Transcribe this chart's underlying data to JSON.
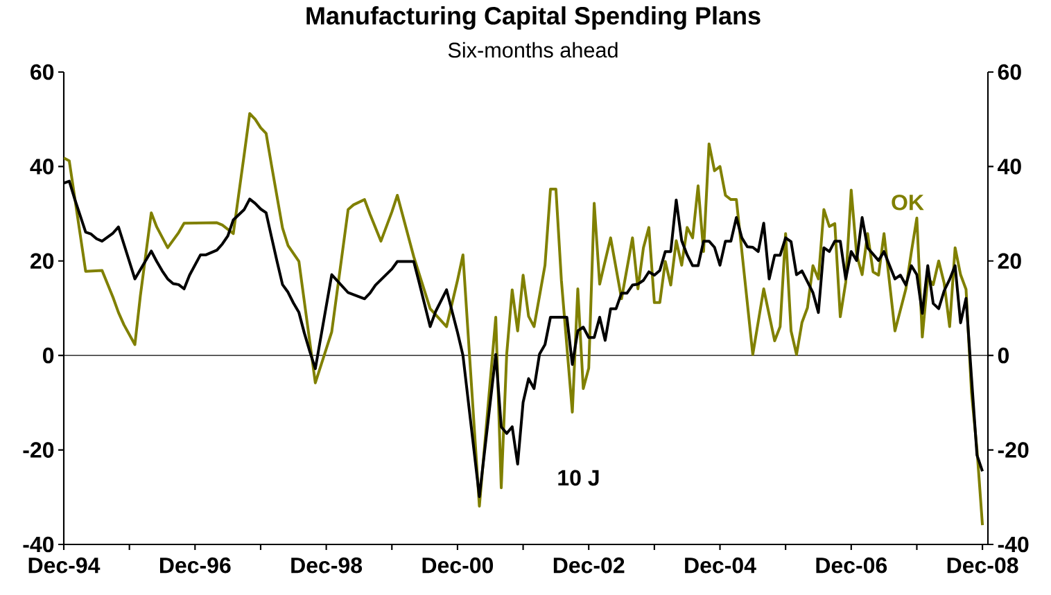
{
  "chart_data": {
    "type": "line",
    "title": "Manufacturing Capital Spending Plans",
    "subtitle": "Six-months ahead",
    "xlim": [
      "1994-12",
      "2009-01"
    ],
    "xticks": [
      {
        "value": "1994-12",
        "label": "Dec-94"
      },
      {
        "value": "1995-12",
        "label": null
      },
      {
        "value": "1996-12",
        "label": "Dec-96"
      },
      {
        "value": "1997-12",
        "label": null
      },
      {
        "value": "1998-12",
        "label": "Dec-98"
      },
      {
        "value": "1999-12",
        "label": null
      },
      {
        "value": "2000-12",
        "label": "Dec-00"
      },
      {
        "value": "2001-12",
        "label": null
      },
      {
        "value": "2002-12",
        "label": "Dec-02"
      },
      {
        "value": "2003-12",
        "label": null
      },
      {
        "value": "2004-12",
        "label": "Dec-04"
      },
      {
        "value": "2005-12",
        "label": null
      },
      {
        "value": "2006-12",
        "label": "Dec-06"
      },
      {
        "value": "2007-12",
        "label": null
      },
      {
        "value": "2008-12",
        "label": "Dec-08"
      }
    ],
    "ylim": [
      -40,
      60
    ],
    "yticks": [
      -40,
      -20,
      0,
      20,
      40,
      60
    ],
    "y2lim": [
      -40,
      60
    ],
    "y2ticks": [
      -40,
      -20,
      0,
      20,
      40,
      60
    ],
    "line_style": "solid",
    "ref_lines": [
      {
        "axis": "y",
        "value": 0,
        "color": "#000000"
      }
    ],
    "series": [
      {
        "name": "OK",
        "color": "#808000",
        "x": [
          "1994-12",
          "1995-01",
          "1995-04",
          "1995-07",
          "1995-09",
          "1995-10",
          "1995-11",
          "1996-01",
          "1996-02",
          "1996-04",
          "1996-05",
          "1996-07",
          "1996-09",
          "1996-10",
          "1997-04",
          "1997-05",
          "1997-07",
          "1997-09",
          "1997-10",
          "1997-11",
          "1997-12",
          "1998-01",
          "1998-02",
          "1998-04",
          "1998-05",
          "1998-07",
          "1998-10",
          "1999-01",
          "1999-04",
          "1999-05",
          "1999-07",
          "1999-08",
          "1999-10",
          "1999-12",
          "2000-01",
          "2000-04",
          "2000-07",
          "2000-10",
          "2000-12",
          "2001-01",
          "2001-04",
          "2001-07",
          "2001-08",
          "2001-09",
          "2001-10",
          "2001-11",
          "2001-12",
          "2002-01",
          "2002-02",
          "2002-04",
          "2002-05",
          "2002-06",
          "2002-07",
          "2002-09",
          "2002-10",
          "2002-11",
          "2002-12",
          "2003-01",
          "2003-02",
          "2003-04",
          "2003-06",
          "2003-08",
          "2003-09",
          "2003-10",
          "2003-11",
          "2003-12",
          "2004-01",
          "2004-02",
          "2004-03",
          "2004-04",
          "2004-05",
          "2004-06",
          "2004-07",
          "2004-08",
          "2004-09",
          "2004-10",
          "2004-11",
          "2004-12",
          "2005-01",
          "2005-02",
          "2005-03",
          "2005-06",
          "2005-08",
          "2005-10",
          "2005-11",
          "2005-12",
          "2006-01",
          "2006-02",
          "2006-03",
          "2006-04",
          "2006-05",
          "2006-06",
          "2006-07",
          "2006-08",
          "2006-09",
          "2006-10",
          "2006-11",
          "2006-12",
          "2007-01",
          "2007-02",
          "2007-03",
          "2007-04",
          "2007-05",
          "2007-06",
          "2007-08",
          "2007-10",
          "2007-11",
          "2007-12",
          "2008-01",
          "2008-02",
          "2008-03",
          "2008-04",
          "2008-05",
          "2008-06",
          "2008-07",
          "2008-08",
          "2008-09",
          "2008-10",
          "2008-11",
          "2008-12"
        ],
        "values": [
          41.8,
          41.2,
          17.8,
          18.0,
          12.3,
          9.1,
          6.5,
          2.3,
          12.6,
          30.2,
          27.2,
          22.8,
          26.0,
          28.0,
          28.1,
          27.6,
          25.8,
          42.6,
          51.2,
          50.0,
          48.2,
          47.0,
          40.2,
          27.0,
          23.3,
          19.9,
          -5.8,
          5.0,
          30.9,
          31.9,
          33.0,
          29.9,
          24.2,
          30.4,
          33.9,
          20.9,
          9.9,
          6.1,
          15.9,
          21.3,
          -31.9,
          8.1,
          -28.0,
          0.3,
          13.9,
          5.2,
          17.0,
          8.3,
          6.1,
          19.1,
          35.2,
          35.2,
          15.9,
          -12.0,
          14.1,
          -7.0,
          -2.7,
          32.2,
          15.1,
          24.9,
          12.0,
          24.9,
          14.1,
          22.8,
          27.1,
          11.2,
          11.2,
          19.9,
          14.9,
          24.3,
          19.1,
          27.1,
          24.9,
          35.9,
          22.0,
          44.8,
          39.1,
          40.0,
          33.9,
          33.0,
          33.0,
          0.2,
          14.1,
          3.1,
          6.1,
          25.8,
          5.2,
          0.2,
          7.0,
          10.1,
          19.0,
          16.2,
          30.9,
          27.3,
          27.9,
          8.2,
          15.5,
          35.0,
          21.3,
          17.1,
          25.8,
          17.7,
          17.0,
          25.8,
          5.2,
          14.1,
          21.9,
          29.1,
          3.9,
          16.4,
          15.0,
          20.0,
          15.3,
          6.1,
          22.8,
          17.1,
          14.0,
          -7.9,
          -19.9,
          -35.9
        ]
      },
      {
        "name": "10 J",
        "color": "#000000",
        "x": [
          "1994-12",
          "1995-01",
          "1995-02",
          "1995-04",
          "1995-05",
          "1995-06",
          "1995-07",
          "1995-09",
          "1995-10",
          "1996-01",
          "1996-04",
          "1996-05",
          "1996-06",
          "1996-07",
          "1996-08",
          "1996-09",
          "1996-10",
          "1996-11",
          "1997-01",
          "1997-02",
          "1997-04",
          "1997-05",
          "1997-06",
          "1997-07",
          "1997-09",
          "1997-10",
          "1997-11",
          "1997-12",
          "1998-01",
          "1998-02",
          "1998-03",
          "1998-04",
          "1998-05",
          "1998-06",
          "1998-07",
          "1998-08",
          "1998-09",
          "1998-10",
          "1999-01",
          "1999-04",
          "1999-07",
          "1999-08",
          "1999-09",
          "1999-12",
          "2000-01",
          "2000-04",
          "2000-05",
          "2000-07",
          "2000-08",
          "2000-10",
          "2000-12",
          "2001-01",
          "2001-04",
          "2001-07",
          "2001-08",
          "2001-09",
          "2001-10",
          "2001-11",
          "2001-12",
          "2002-01",
          "2002-02",
          "2002-03",
          "2002-04",
          "2002-05",
          "2002-08",
          "2002-09",
          "2002-10",
          "2002-11",
          "2002-12",
          "2003-01",
          "2003-02",
          "2003-03",
          "2003-04",
          "2003-05",
          "2003-06",
          "2003-07",
          "2003-08",
          "2003-09",
          "2003-10",
          "2003-11",
          "2003-12",
          "2004-01",
          "2004-02",
          "2004-03",
          "2004-04",
          "2004-05",
          "2004-06",
          "2004-07",
          "2004-08",
          "2004-09",
          "2004-10",
          "2004-11",
          "2004-12",
          "2005-01",
          "2005-02",
          "2005-03",
          "2005-04",
          "2005-05",
          "2005-06",
          "2005-07",
          "2005-08",
          "2005-09",
          "2005-10",
          "2005-11",
          "2005-12",
          "2006-01",
          "2006-02",
          "2006-03",
          "2006-05",
          "2006-06",
          "2006-07",
          "2006-08",
          "2006-09",
          "2006-10",
          "2006-11",
          "2006-12",
          "2007-01",
          "2007-02",
          "2007-03",
          "2007-05",
          "2007-06",
          "2007-08",
          "2007-09",
          "2007-10",
          "2007-11",
          "2007-12",
          "2008-01",
          "2008-02",
          "2008-03",
          "2008-04",
          "2008-05",
          "2008-06",
          "2008-07",
          "2008-08",
          "2008-09",
          "2008-10",
          "2008-11",
          "2008-12"
        ],
        "values": [
          36.5,
          36.9,
          33.1,
          26.1,
          25.7,
          24.7,
          24.2,
          25.9,
          27.2,
          16.2,
          22.1,
          19.9,
          17.9,
          16.2,
          15.2,
          15.0,
          14.1,
          17.0,
          21.3,
          21.3,
          22.3,
          23.6,
          25.3,
          28.7,
          30.9,
          33.1,
          32.2,
          31.0,
          30.2,
          25.0,
          19.9,
          15.0,
          13.4,
          11.1,
          9.1,
          4.7,
          0.8,
          -2.8,
          17.1,
          13.3,
          12.0,
          13.2,
          14.9,
          18.3,
          19.9,
          19.9,
          15.4,
          6.1,
          9.3,
          13.9,
          4.9,
          0.0,
          -29.9,
          0.2,
          -15.1,
          -16.5,
          -15.1,
          -23.0,
          -9.9,
          -4.9,
          -7.0,
          0.3,
          2.3,
          8.1,
          8.1,
          -1.9,
          5.2,
          6.0,
          3.8,
          3.8,
          8.1,
          3.2,
          9.9,
          9.9,
          13.2,
          13.2,
          14.9,
          15.1,
          15.9,
          17.7,
          17.0,
          18.0,
          22.0,
          22.0,
          32.9,
          24.3,
          21.3,
          19.0,
          19.0,
          24.2,
          24.2,
          22.9,
          19.1,
          24.2,
          24.2,
          29.2,
          24.9,
          23.0,
          22.9,
          22.0,
          28.0,
          16.2,
          21.2,
          21.2,
          24.9,
          24.1,
          17.1,
          17.9,
          13.3,
          9.1,
          22.8,
          22.0,
          24.2,
          24.2,
          16.2,
          22.0,
          20.1,
          29.2,
          22.8,
          20.1,
          22.0,
          16.2,
          17.0,
          14.9,
          19.0,
          17.1,
          8.9,
          19.0,
          11.0,
          9.9,
          13.7,
          16.1,
          19.0,
          6.9,
          12.1,
          -4.7,
          -21.1,
          -24.5
        ]
      }
    ]
  }
}
